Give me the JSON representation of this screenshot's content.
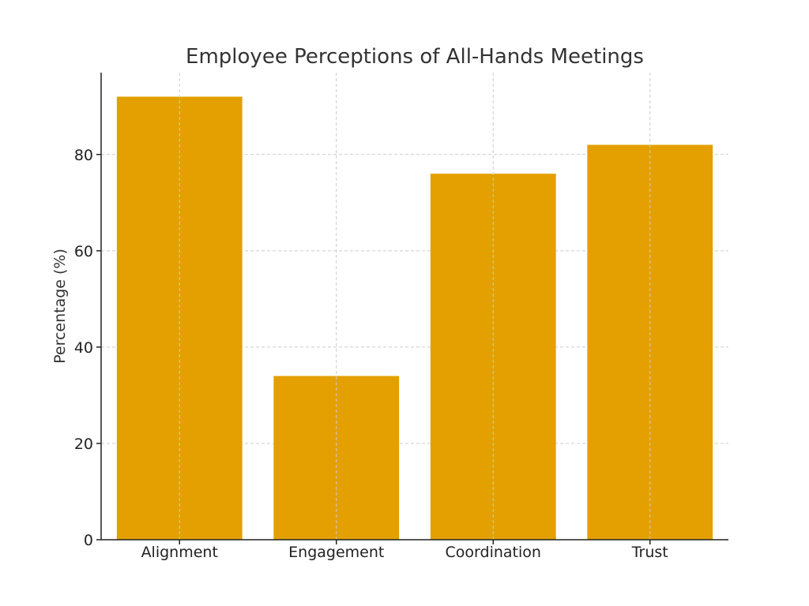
{
  "chart_data": {
    "type": "bar",
    "title": "Employee Perceptions of All-Hands Meetings",
    "xlabel": "",
    "ylabel": "Percentage (%)",
    "categories": [
      "Alignment",
      "Engagement",
      "Coordination",
      "Trust"
    ],
    "values": [
      92,
      34,
      76,
      82
    ],
    "ylim": [
      0,
      97
    ],
    "yticks": [
      0,
      20,
      40,
      60,
      80
    ],
    "grid": true,
    "bar_color": "#E3A000"
  }
}
